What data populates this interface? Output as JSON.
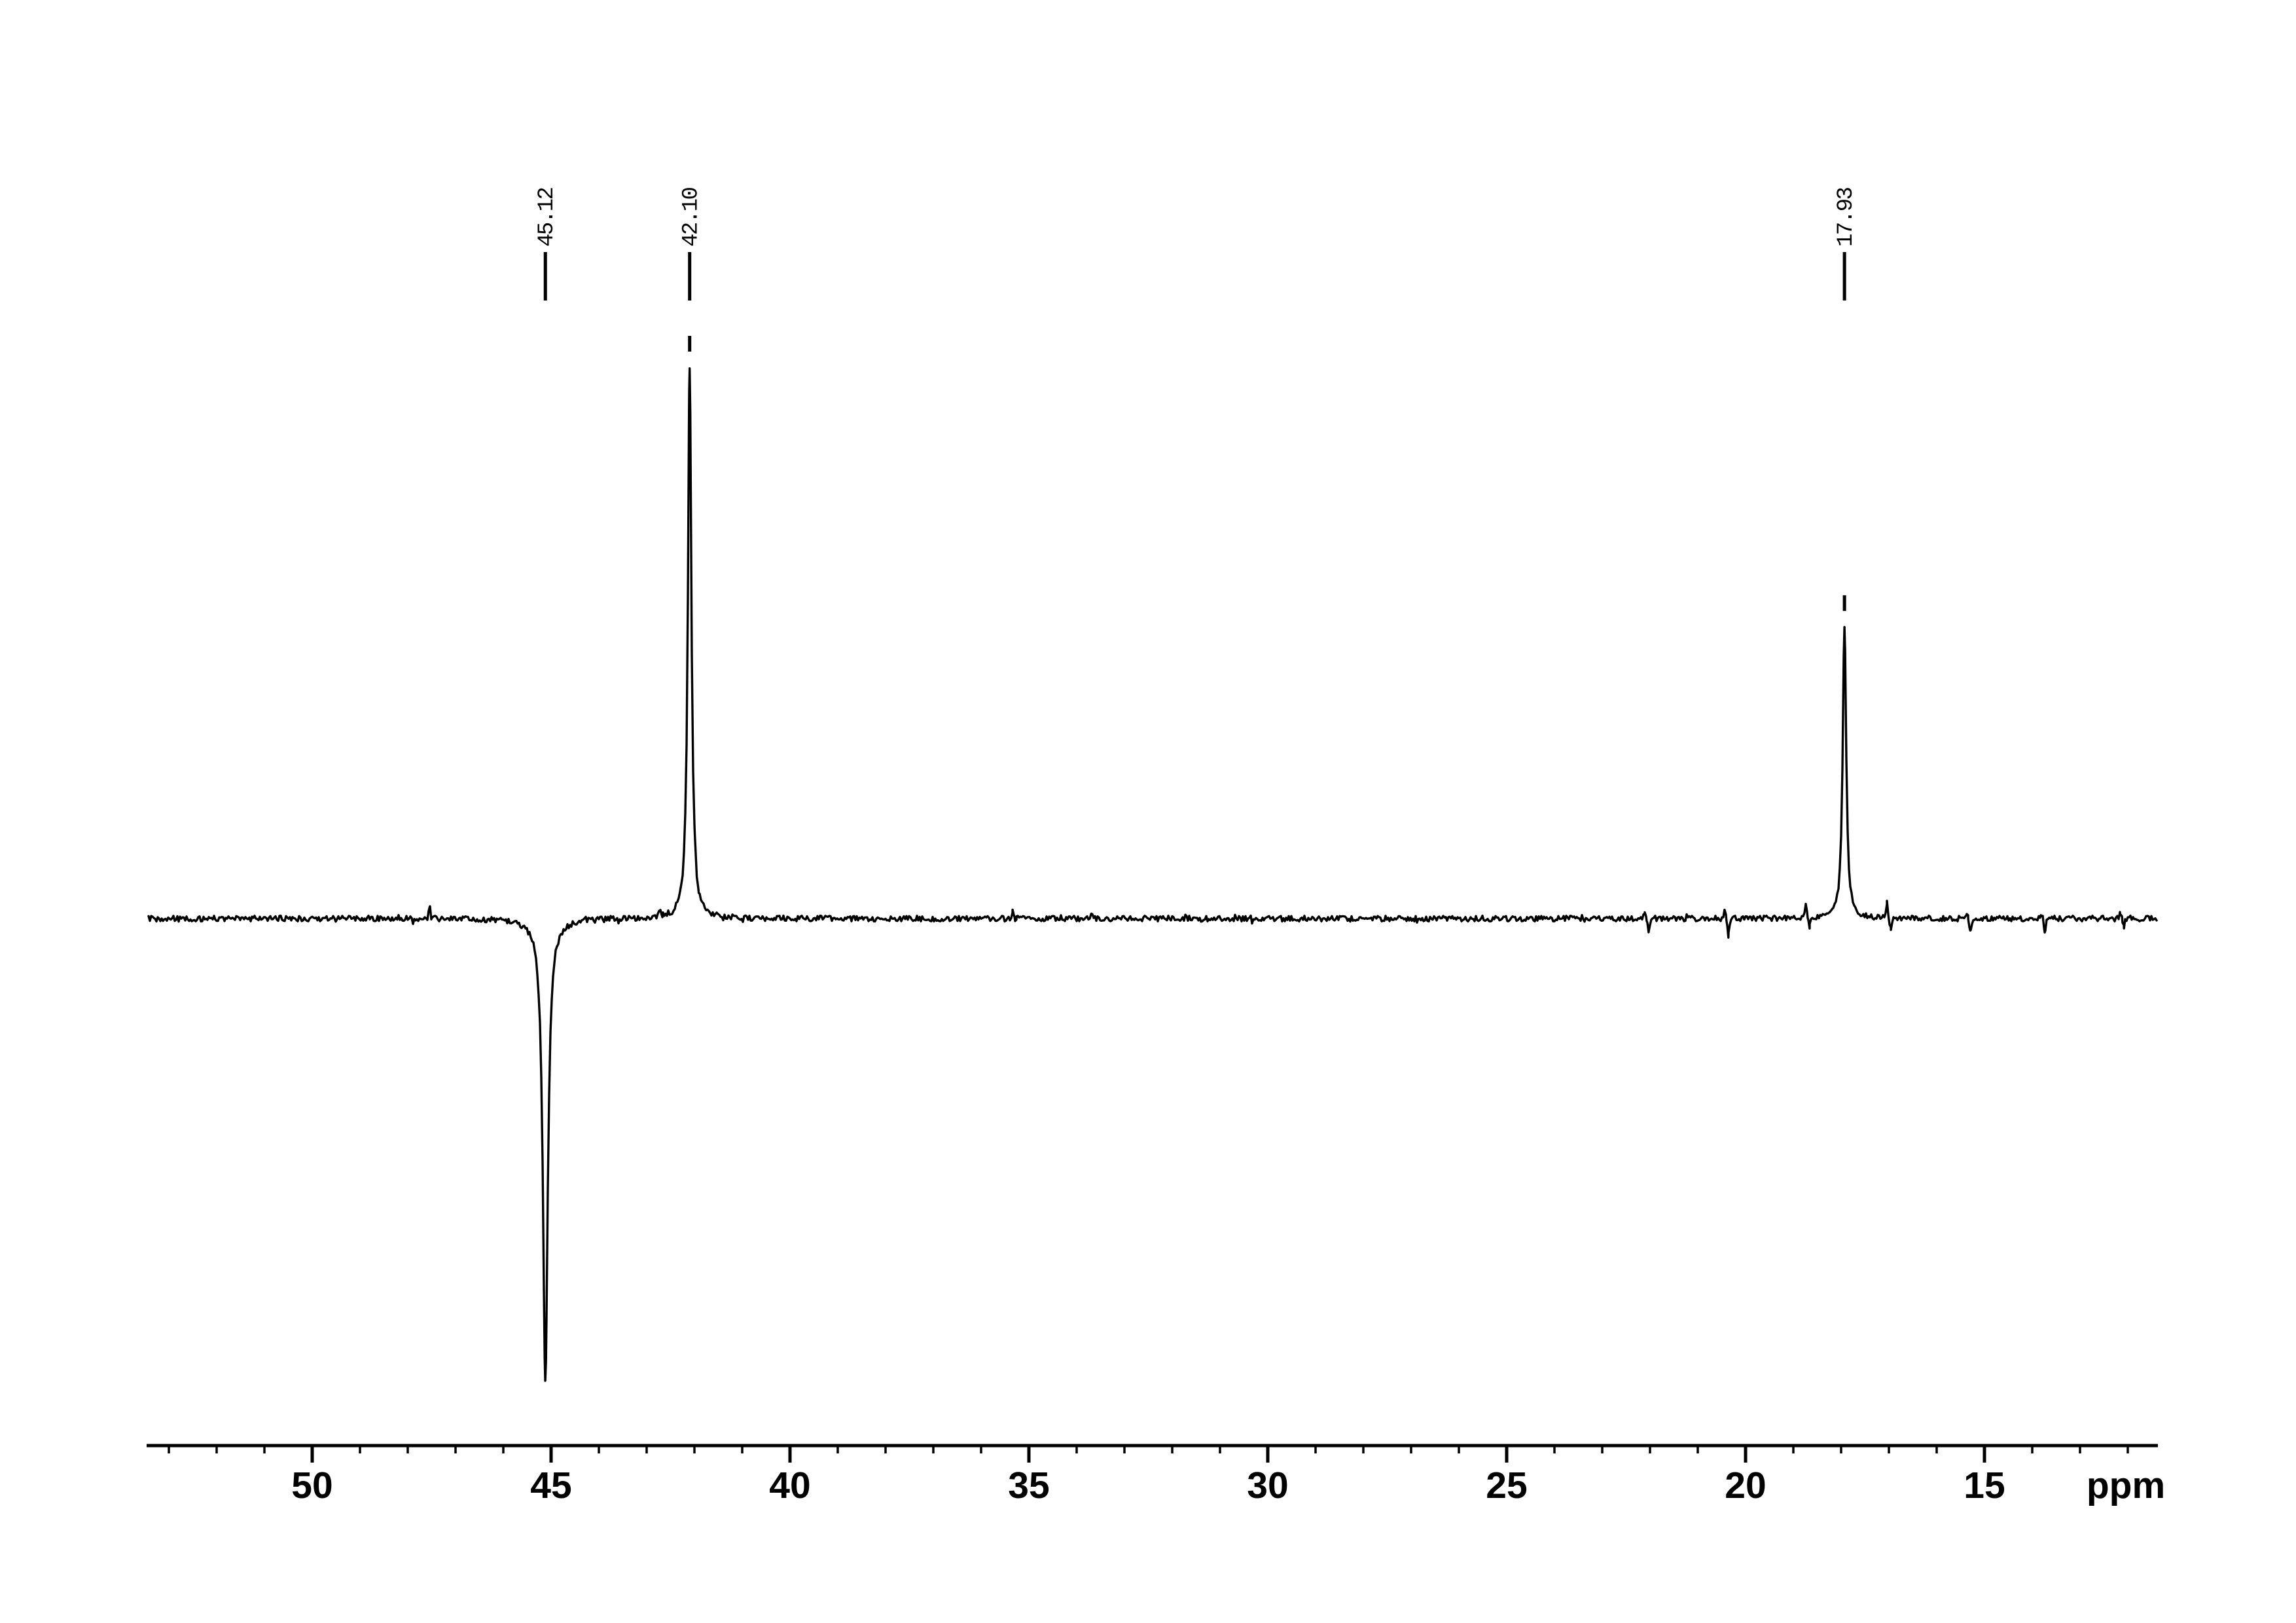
{
  "figure": {
    "description": "13C DEPT NMR spectrum, black trace on white background, no title shown",
    "background_color": "#ffffff",
    "ink_color": "#000000"
  },
  "chart_data": {
    "type": "line",
    "kind": "nmr-spectrum",
    "title": "",
    "xlabel": "ppm",
    "ylabel": "",
    "grid": false,
    "legend": false,
    "x_axis": {
      "unit_label": "ppm",
      "direction": "decreasing-left-to-right",
      "visible_range_ppm": [
        53.4,
        11.3
      ],
      "major_tick_labels": [
        "50",
        "45",
        "40",
        "35",
        "30",
        "25",
        "20",
        "15"
      ],
      "major_ticks_ppm": [
        50,
        45,
        40,
        35,
        30,
        25,
        20,
        15
      ],
      "minor_tick_step_ppm": 1,
      "minor_ticks_from_ppm": 53,
      "minor_ticks_to_ppm": 12
    },
    "peaks": [
      {
        "label": "45.12",
        "ppm": 45.12,
        "sign": "negative",
        "rel_intensity": -0.84,
        "clip_gap_at_apex": false
      },
      {
        "label": "42.10",
        "ppm": 42.1,
        "sign": "positive",
        "rel_intensity": 1.0,
        "clip_gap_at_apex": true
      },
      {
        "label": "17.93",
        "ppm": 17.93,
        "sign": "positive",
        "rel_intensity": 0.53,
        "clip_gap_at_apex": true
      }
    ],
    "minor_features": [
      {
        "ppm": 47.5,
        "up_rel": 0.021,
        "down_rel": 0.0
      },
      {
        "ppm": 42.67,
        "up_rel": 0.014,
        "down_rel": 0.0
      },
      {
        "ppm": 41.95,
        "up_rel": 0.017,
        "down_rel": 0.0
      },
      {
        "ppm": 35.3,
        "up_rel": 0.015,
        "down_rel": 0.0
      },
      {
        "ppm": 33.65,
        "up_rel": 0.012,
        "down_rel": 0.0
      },
      {
        "ppm": 22.07,
        "up_rel": 0.012,
        "down_rel": 0.026
      },
      {
        "ppm": 20.4,
        "up_rel": 0.014,
        "down_rel": 0.031
      },
      {
        "ppm": 18.7,
        "up_rel": 0.024,
        "down_rel": 0.017
      },
      {
        "ppm": 17.0,
        "up_rel": 0.028,
        "down_rel": 0.021
      },
      {
        "ppm": 15.34,
        "up_rel": 0.009,
        "down_rel": 0.026
      },
      {
        "ppm": 13.78,
        "up_rel": 0.007,
        "down_rel": 0.028
      },
      {
        "ppm": 12.12,
        "up_rel": 0.009,
        "down_rel": 0.014
      }
    ],
    "noise_amplitude_rel": 0.006
  }
}
